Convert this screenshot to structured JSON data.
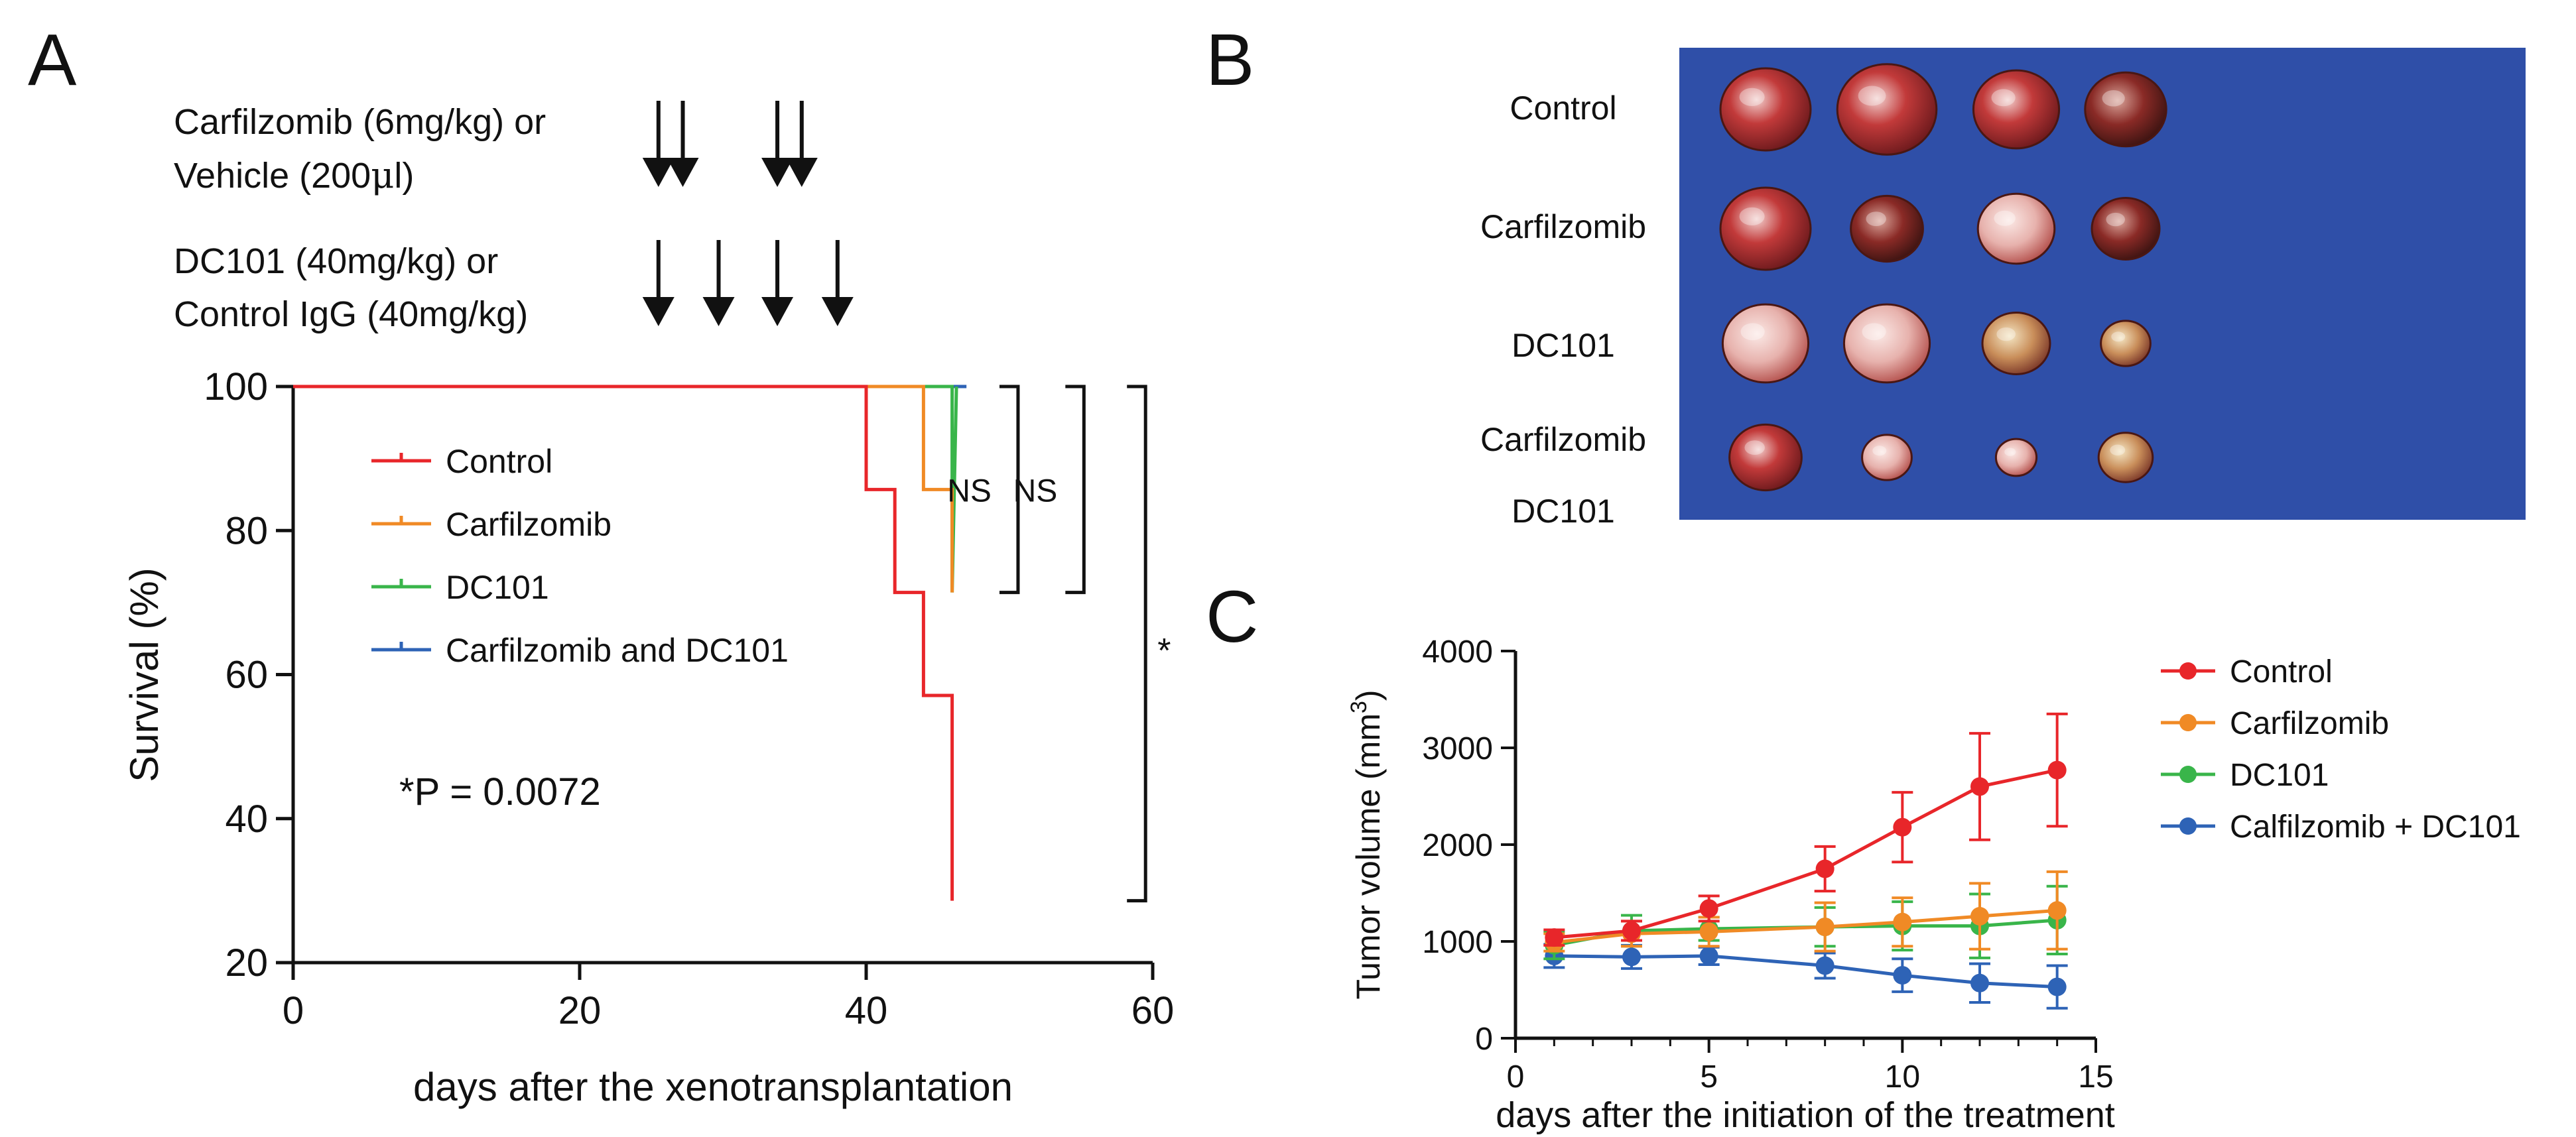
{
  "panels": {
    "A": {
      "label": "A"
    },
    "B": {
      "label": "B"
    },
    "C": {
      "label": "C"
    }
  },
  "colors": {
    "control": "#e8262a",
    "carfilzomib": "#f08a25",
    "dc101": "#39b54a",
    "combo": "#2e63b6",
    "axis": "#111111",
    "photo_bg": "#2f4fa8"
  },
  "schedule": {
    "drug1_line1": "Carfilzomib (6mg/kg) or",
    "drug1_line2_pre": "Vehicle (200",
    "drug1_line2_mu": "μ",
    "drug1_line2_post": "l)",
    "drug2_line1": "DC101 (40mg/kg) or",
    "drug2_line2": "Control IgG (40mg/kg)",
    "drug1_days": [
      25.5,
      27.2,
      33.8,
      35.5
    ],
    "drug2_days": [
      25.5,
      29.7,
      33.8,
      38.0
    ]
  },
  "photo": {
    "row_labels": [
      "Control",
      "Carfilzomib",
      "DC101",
      "Carfilzomib",
      "DC101"
    ],
    "tumor_rows": [
      [
        {
          "size": 1.0,
          "hue": "red"
        },
        {
          "size": 1.1,
          "hue": "red"
        },
        {
          "size": 0.95,
          "hue": "red"
        },
        {
          "size": 0.9,
          "hue": "dark"
        }
      ],
      [
        {
          "size": 1.0,
          "hue": "red"
        },
        {
          "size": 0.8,
          "hue": "dark"
        },
        {
          "size": 0.85,
          "hue": "pink"
        },
        {
          "size": 0.75,
          "hue": "dark"
        }
      ],
      [
        {
          "size": 0.95,
          "hue": "pink"
        },
        {
          "size": 0.95,
          "hue": "pink"
        },
        {
          "size": 0.75,
          "hue": "mixed"
        },
        {
          "size": 0.55,
          "hue": "mixed"
        }
      ],
      [
        {
          "size": 0.8,
          "hue": "red"
        },
        {
          "size": 0.55,
          "hue": "pink"
        },
        {
          "size": 0.45,
          "hue": "pink"
        },
        {
          "size": 0.6,
          "hue": "mixed"
        }
      ]
    ]
  },
  "chart_data": [
    {
      "id": "survival",
      "type": "line",
      "step": true,
      "title": "",
      "xlabel": "days after the xenotransplantation",
      "ylabel": "Survival (%)",
      "xlim": [
        0,
        60
      ],
      "ylim": [
        20,
        100
      ],
      "xticks": [
        0,
        20,
        40,
        60
      ],
      "yticks": [
        20,
        40,
        60,
        80,
        100
      ],
      "legend_position": "upper-left inside",
      "series": [
        {
          "name": "Control",
          "color_key": "control",
          "x": [
            0,
            40,
            40,
            42,
            42,
            44,
            44,
            46,
            46
          ],
          "y": [
            100,
            100,
            85.7,
            85.7,
            71.4,
            71.4,
            57.1,
            57.1,
            28.6
          ]
        },
        {
          "name": "Carfilzomib",
          "color_key": "carfilzomib",
          "x": [
            0,
            44,
            44,
            46,
            46
          ],
          "y": [
            100,
            100,
            85.7,
            85.7,
            71.4
          ]
        },
        {
          "name": "DC101",
          "color_key": "dc101",
          "x": [
            0,
            46,
            46,
            46.3
          ],
          "y": [
            100,
            100,
            71.4,
            100
          ]
        },
        {
          "name": "Carfilzomib and DC101",
          "color_key": "combo",
          "x": [
            0,
            47
          ],
          "y": [
            100,
            100
          ]
        }
      ],
      "annotations": {
        "pvalue": "*P = 0.0072",
        "brackets": [
          {
            "label": "NS",
            "x": 50.6,
            "y_top": 100,
            "y_bottom": 71.4
          },
          {
            "label": "NS",
            "x": 55.2,
            "y_top": 100,
            "y_bottom": 71.4
          },
          {
            "label": "*",
            "x": 59.5,
            "y_top": 100,
            "y_bottom": 28.6
          }
        ]
      }
    },
    {
      "id": "tumor-volume",
      "type": "line",
      "title": "",
      "xlabel": "days after the initiation of the treatment",
      "ylabel_main": "Tumor volume (mm",
      "ylabel_sup": "3",
      "ylabel_end": ")",
      "xlim": [
        0,
        15
      ],
      "ylim": [
        0,
        4000
      ],
      "xticks": [
        0,
        5,
        10,
        15
      ],
      "yticks": [
        0,
        1000,
        2000,
        3000,
        4000
      ],
      "legend_position": "right",
      "x": [
        1,
        3,
        5,
        8,
        10,
        12,
        14
      ],
      "series": [
        {
          "name": "Control",
          "color_key": "control",
          "values": [
            1040,
            1110,
            1340,
            1750,
            2180,
            2600,
            2770
          ],
          "errors": [
            80,
            100,
            130,
            230,
            360,
            550,
            580
          ]
        },
        {
          "name": "Carfilzomib",
          "color_key": "carfilzomib",
          "values": [
            990,
            1080,
            1100,
            1150,
            1200,
            1260,
            1320
          ],
          "errors": [
            90,
            130,
            150,
            250,
            250,
            340,
            400
          ]
        },
        {
          "name": "DC101",
          "color_key": "dc101",
          "values": [
            960,
            1110,
            1130,
            1150,
            1160,
            1160,
            1220
          ],
          "errors": [
            140,
            160,
            120,
            200,
            250,
            330,
            350
          ]
        },
        {
          "name": "Calfilzomib + DC101",
          "color_key": "combo",
          "values": [
            850,
            840,
            850,
            750,
            650,
            570,
            530
          ],
          "errors": [
            120,
            120,
            90,
            130,
            170,
            200,
            220
          ]
        }
      ]
    }
  ]
}
